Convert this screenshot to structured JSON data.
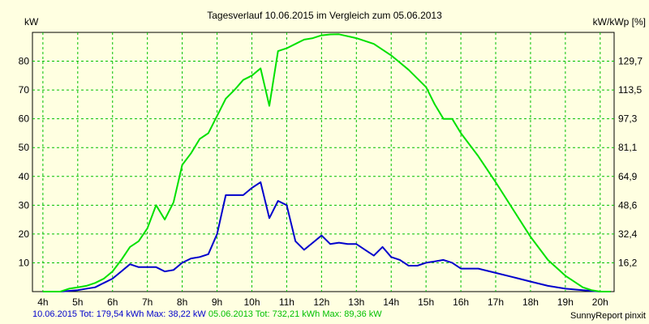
{
  "chart_data": {
    "type": "line",
    "title": "Tagesverlauf 10.06.2015 im Vergleich zum 05.06.2013",
    "ylabel_left": "kW",
    "ylabel_right": "kW/kWp [%]",
    "x_ticks": [
      "4h",
      "5h",
      "6h",
      "7h",
      "8h",
      "9h",
      "10h",
      "11h",
      "12h",
      "13h",
      "14h",
      "15h",
      "16h",
      "17h",
      "18h",
      "19h",
      "20h"
    ],
    "xlim": [
      3.7,
      20.4
    ],
    "ylim": [
      0,
      90
    ],
    "y_ticks_left": [
      10,
      20,
      30,
      40,
      50,
      60,
      70,
      80
    ],
    "y_ticks_right": [
      {
        "value": 10,
        "label": "16,2"
      },
      {
        "value": 20,
        "label": "32,4"
      },
      {
        "value": 30,
        "label": "48,6"
      },
      {
        "value": 40,
        "label": "64,9"
      },
      {
        "value": 50,
        "label": "81,1"
      },
      {
        "value": 60,
        "label": "97,3"
      },
      {
        "value": 70,
        "label": "113,5"
      },
      {
        "value": 80,
        "label": "129,7"
      }
    ],
    "grid": true,
    "series": [
      {
        "name": "10.06.2015",
        "color": "#0000cc",
        "points": [
          [
            4.0,
            0
          ],
          [
            4.5,
            0
          ],
          [
            5.0,
            0.5
          ],
          [
            5.5,
            1.5
          ],
          [
            5.75,
            3
          ],
          [
            6.0,
            4.5
          ],
          [
            6.25,
            7
          ],
          [
            6.5,
            9.5
          ],
          [
            6.75,
            8.5
          ],
          [
            7.0,
            8.5
          ],
          [
            7.25,
            8.5
          ],
          [
            7.5,
            7
          ],
          [
            7.75,
            7.5
          ],
          [
            8.0,
            10
          ],
          [
            8.25,
            11.5
          ],
          [
            8.5,
            12
          ],
          [
            8.75,
            13
          ],
          [
            9.0,
            20
          ],
          [
            9.25,
            33.5
          ],
          [
            9.5,
            33.5
          ],
          [
            9.75,
            33.5
          ],
          [
            10.0,
            36
          ],
          [
            10.25,
            38
          ],
          [
            10.5,
            25.5
          ],
          [
            10.75,
            31.5
          ],
          [
            11.0,
            30
          ],
          [
            11.25,
            17.5
          ],
          [
            11.5,
            14.5
          ],
          [
            11.75,
            17
          ],
          [
            12.0,
            19.5
          ],
          [
            12.25,
            16.5
          ],
          [
            12.5,
            17
          ],
          [
            12.75,
            16.5
          ],
          [
            13.0,
            16.5
          ],
          [
            13.25,
            14.5
          ],
          [
            13.5,
            12.5
          ],
          [
            13.75,
            15.5
          ],
          [
            14.0,
            12
          ],
          [
            14.25,
            11
          ],
          [
            14.5,
            9
          ],
          [
            14.75,
            9
          ],
          [
            15.0,
            10
          ],
          [
            15.25,
            10.5
          ],
          [
            15.5,
            11
          ],
          [
            15.75,
            10
          ],
          [
            16.0,
            8
          ],
          [
            16.5,
            8
          ],
          [
            17.0,
            6.5
          ],
          [
            17.5,
            5
          ],
          [
            18.0,
            3.5
          ],
          [
            18.5,
            2
          ],
          [
            19.0,
            1
          ],
          [
            19.5,
            0.5
          ],
          [
            20.0,
            0
          ],
          [
            20.3,
            0
          ]
        ]
      },
      {
        "name": "05.06.2013",
        "color": "#00e000",
        "points": [
          [
            4.0,
            0
          ],
          [
            4.5,
            0
          ],
          [
            4.75,
            1
          ],
          [
            5.0,
            1.5
          ],
          [
            5.25,
            2
          ],
          [
            5.5,
            3
          ],
          [
            5.75,
            4.5
          ],
          [
            6.0,
            7
          ],
          [
            6.25,
            11
          ],
          [
            6.5,
            15.5
          ],
          [
            6.75,
            17.5
          ],
          [
            7.0,
            22
          ],
          [
            7.25,
            30
          ],
          [
            7.5,
            25
          ],
          [
            7.75,
            31
          ],
          [
            8.0,
            44
          ],
          [
            8.25,
            48
          ],
          [
            8.5,
            53
          ],
          [
            8.75,
            55
          ],
          [
            9.0,
            61
          ],
          [
            9.25,
            67
          ],
          [
            9.5,
            70
          ],
          [
            9.75,
            73.5
          ],
          [
            10.0,
            75
          ],
          [
            10.25,
            77.5
          ],
          [
            10.5,
            64.5
          ],
          [
            10.75,
            83.5
          ],
          [
            11.0,
            84.5
          ],
          [
            11.25,
            86
          ],
          [
            11.5,
            87.5
          ],
          [
            11.75,
            88
          ],
          [
            12.0,
            89
          ],
          [
            12.25,
            89.3
          ],
          [
            12.5,
            89.36
          ],
          [
            13.0,
            88
          ],
          [
            13.5,
            86
          ],
          [
            14.0,
            82
          ],
          [
            14.5,
            77
          ],
          [
            15.0,
            71
          ],
          [
            15.25,
            65
          ],
          [
            15.5,
            60
          ],
          [
            15.75,
            60
          ],
          [
            16.0,
            55
          ],
          [
            16.5,
            47
          ],
          [
            17.0,
            38
          ],
          [
            17.5,
            28.5
          ],
          [
            18.0,
            19
          ],
          [
            18.5,
            11
          ],
          [
            19.0,
            5.5
          ],
          [
            19.5,
            1.5
          ],
          [
            19.75,
            0.5
          ],
          [
            20.0,
            0
          ],
          [
            20.3,
            0
          ]
        ]
      }
    ]
  },
  "footer": {
    "series1_text": "10.06.2015 Tot: 179,54 kWh Max: 38,22 kW",
    "series1_color": "#0000cc",
    "series2_text": "05.06.2013 Tot: 732,21 kWh Max: 89,36 kW",
    "series2_color": "#00c000",
    "credit": "SunnyReport pinxit"
  }
}
